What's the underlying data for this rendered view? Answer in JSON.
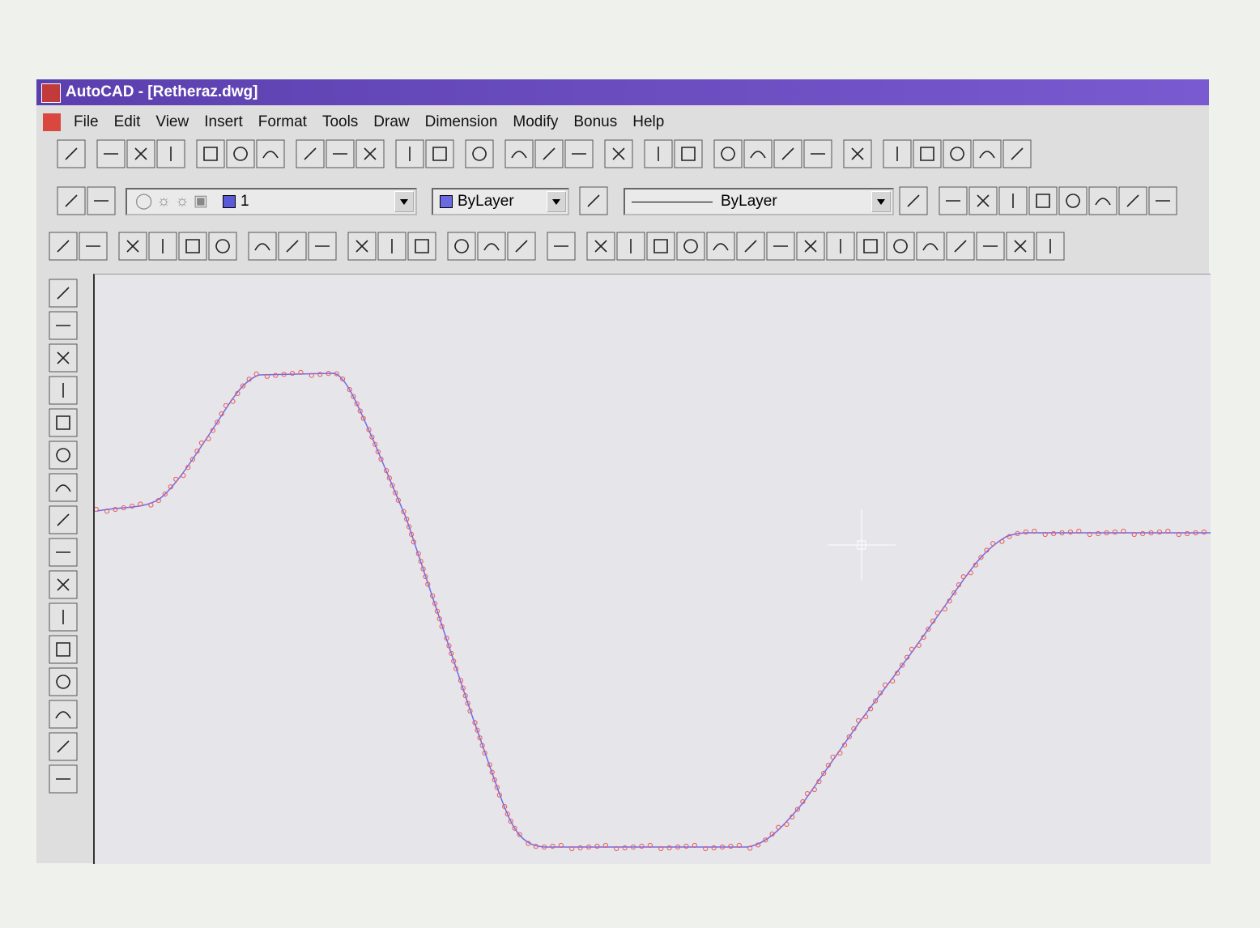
{
  "window": {
    "title": "AutoCAD - [Retheraz.dwg]"
  },
  "menu": [
    "File",
    "Edit",
    "View",
    "Insert",
    "Format",
    "Tools",
    "Draw",
    "Dimension",
    "Modify",
    "Bonus",
    "Help"
  ],
  "properties": {
    "layer": "1",
    "color": "ByLayer",
    "linetype": "ByLayer"
  }
}
